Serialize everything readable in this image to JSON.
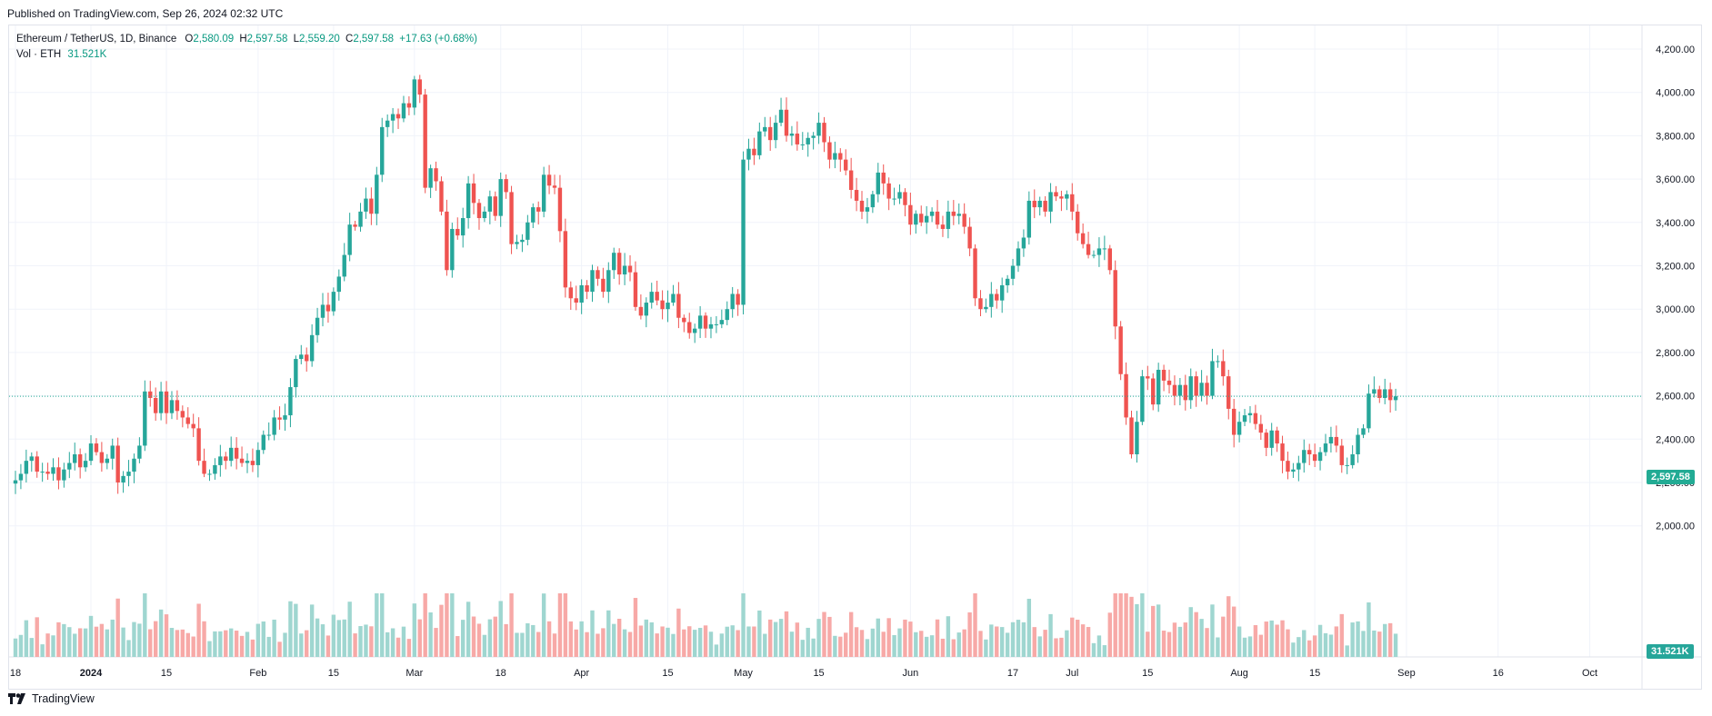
{
  "published": "Published on TradingView.com, Sep 26, 2024 02:32 UTC",
  "legend": {
    "symbol": "Ethereum / TetherUS, 1D, Binance",
    "open_label": "O",
    "open": "2,580.09",
    "high_label": "H",
    "high": "2,597.58",
    "low_label": "L",
    "low": "2,559.20",
    "close_label": "C",
    "close": "2,597.58",
    "change": "+17.63 (+0.68%)",
    "vol_label": "Vol · ETH",
    "vol_value": "31.521K"
  },
  "price_tag": "2,597.58",
  "volume_tag": "31.521K",
  "footer": {
    "brand": "TradingView"
  },
  "colors": {
    "up": "#26a69a",
    "down": "#ef5350",
    "vol_up": "#9fd6d0",
    "vol_down": "#f7a9a7",
    "last_price": "#22ab94",
    "grid": "#f0f3fa"
  },
  "chart_data": {
    "type": "candlestick",
    "ylim": [
      1900,
      4300
    ],
    "y_ticks": [
      "4,200.00",
      "4,000.00",
      "3,800.00",
      "3,600.00",
      "3,400.00",
      "3,200.00",
      "3,000.00",
      "2,800.00",
      "2,600.00",
      "2,400.00",
      "2,200.00",
      "2,000.00"
    ],
    "y_tick_values": [
      4200,
      4000,
      3800,
      3600,
      3400,
      3200,
      3000,
      2800,
      2600,
      2400,
      2200,
      2000
    ],
    "x_ticks": [
      "18",
      "2024",
      "15",
      "Feb",
      "15",
      "Mar",
      "18",
      "Apr",
      "15",
      "May",
      "15",
      "Jun",
      "17",
      "Jul",
      "15",
      "Aug",
      "15",
      "Sep",
      "16",
      "Oct"
    ],
    "x_tick_days": [
      0,
      14,
      28,
      45,
      59,
      74,
      90,
      105,
      121,
      135,
      149,
      166,
      185,
      196,
      210,
      227,
      241,
      258,
      275,
      292
    ],
    "last_price": 2597.58,
    "start_date": "2023-12-18",
    "closes": [
      2210,
      2240,
      2300,
      2320,
      2250,
      2250,
      2240,
      2270,
      2210,
      2260,
      2290,
      2330,
      2270,
      2300,
      2380,
      2340,
      2290,
      2310,
      2370,
      2200,
      2230,
      2250,
      2310,
      2370,
      2620,
      2590,
      2520,
      2620,
      2520,
      2580,
      2530,
      2500,
      2470,
      2450,
      2300,
      2240,
      2240,
      2280,
      2320,
      2300,
      2360,
      2310,
      2290,
      2300,
      2280,
      2350,
      2420,
      2420,
      2500,
      2490,
      2510,
      2640,
      2770,
      2790,
      2760,
      2880,
      2960,
      3020,
      2990,
      3080,
      3150,
      3250,
      3390,
      3380,
      3450,
      3510,
      3440,
      3620,
      3840,
      3870,
      3900,
      3880,
      3950,
      3930,
      4060,
      3990,
      3560,
      3650,
      3590,
      3450,
      3180,
      3370,
      3340,
      3420,
      3580,
      3490,
      3420,
      3450,
      3520,
      3430,
      3600,
      3540,
      3300,
      3310,
      3320,
      3400,
      3470,
      3450,
      3620,
      3570,
      3560,
      3360,
      3100,
      3050,
      3030,
      3110,
      3080,
      3180,
      3140,
      3080,
      3180,
      3260,
      3160,
      3200,
      3170,
      3010,
      2970,
      3030,
      3080,
      3040,
      3000,
      3030,
      3070,
      2960,
      2940,
      2890,
      2910,
      2970,
      2910,
      2930,
      2930,
      2950,
      3000,
      3070,
      3020,
      3690,
      3740,
      3710,
      3820,
      3840,
      3780,
      3860,
      3920,
      3800,
      3810,
      3760,
      3760,
      3790,
      3800,
      3860,
      3770,
      3690,
      3720,
      3690,
      3640,
      3550,
      3500,
      3450,
      3470,
      3530,
      3630,
      3580,
      3510,
      3510,
      3540,
      3480,
      3390,
      3440,
      3400,
      3430,
      3450,
      3390,
      3370,
      3450,
      3430,
      3440,
      3380,
      3280,
      3050,
      3000,
      3010,
      3070,
      3040,
      3110,
      3140,
      3200,
      3280,
      3330,
      3500,
      3470,
      3500,
      3450,
      3540,
      3520,
      3510,
      3530,
      3450,
      3350,
      3300,
      3250,
      3250,
      3280,
      3280,
      3180,
      2920,
      2700,
      2500,
      2330,
      2480,
      2690,
      2680,
      2560,
      2720,
      2670,
      2650,
      2600,
      2650,
      2580,
      2690,
      2600,
      2660,
      2600,
      2760,
      2760,
      2690,
      2540,
      2420,
      2480,
      2510,
      2520,
      2470,
      2430,
      2360,
      2440,
      2380,
      2300,
      2250,
      2260,
      2290,
      2350,
      2330,
      2300,
      2340,
      2380,
      2410,
      2370,
      2280,
      2280,
      2330,
      2420,
      2450,
      2610,
      2630,
      2590,
      2630,
      2580,
      2597.58
    ],
    "opens_note": "each candle opens at the previous candle's close",
    "volume_ylim": [
      0,
      900000
    ]
  }
}
